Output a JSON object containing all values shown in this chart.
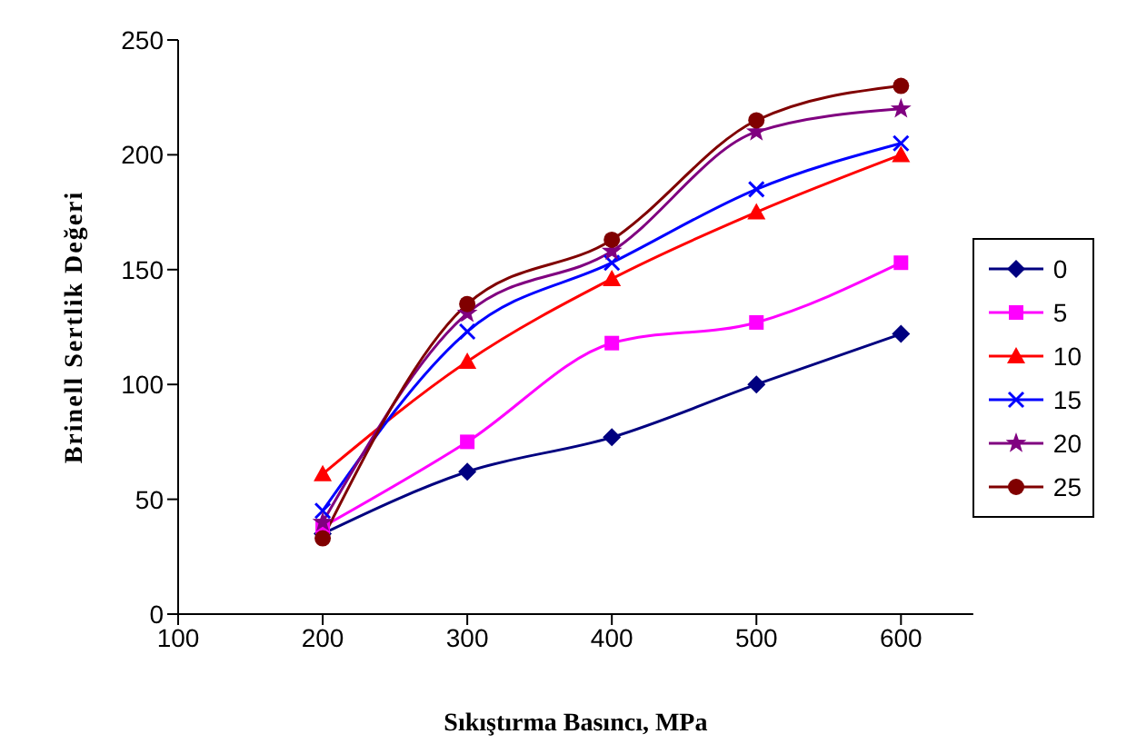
{
  "chart_data": {
    "type": "line",
    "xlabel": "Sıkıştırma Basıncı, MPa",
    "ylabel": "Brinell Sertlik Değeri",
    "x": [
      200,
      300,
      400,
      500,
      600
    ],
    "xlim": [
      100,
      650
    ],
    "xticks": [
      100,
      200,
      300,
      400,
      500,
      600
    ],
    "ylim": [
      0,
      250
    ],
    "yticks": [
      0,
      50,
      100,
      150,
      200,
      250
    ],
    "grid": false,
    "legend": "right",
    "series": [
      {
        "name": "0",
        "color": "#000080",
        "marker": "diamond",
        "values": [
          35,
          62,
          77,
          100,
          122
        ]
      },
      {
        "name": "5",
        "color": "#ff00ff",
        "marker": "square",
        "values": [
          38,
          75,
          118,
          127,
          153
        ]
      },
      {
        "name": "10",
        "color": "#ff0000",
        "marker": "triangle",
        "values": [
          61,
          110,
          146,
          175,
          200
        ]
      },
      {
        "name": "15",
        "color": "#0000ff",
        "marker": "cross",
        "values": [
          45,
          123,
          153,
          185,
          205
        ]
      },
      {
        "name": "20",
        "color": "#800080",
        "marker": "star",
        "values": [
          40,
          131,
          158,
          210,
          220
        ]
      },
      {
        "name": "25",
        "color": "#800000",
        "marker": "circle",
        "values": [
          33,
          135,
          163,
          215,
          230
        ]
      }
    ]
  }
}
